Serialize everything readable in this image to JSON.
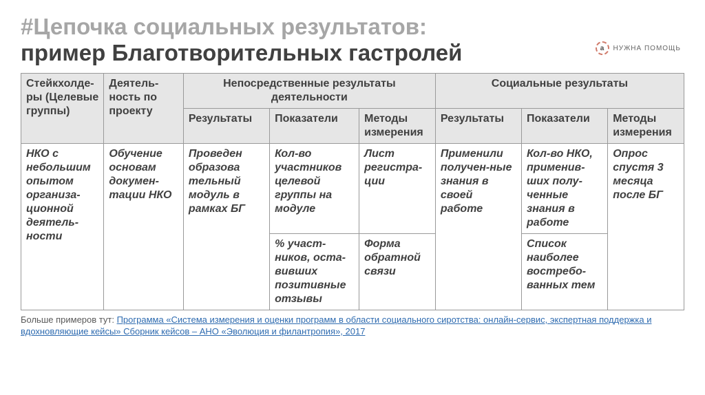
{
  "title": {
    "line1": "#Цепочка социальных результатов:",
    "line2": "пример Благотворительных гастролей"
  },
  "brand": {
    "icon_letter": "a",
    "text": "НУЖНА ПОМОЩЬ"
  },
  "table": {
    "headers": {
      "col1": "Стейкхолде-ры (Целевые группы)",
      "col2": "Деятель-ность по проекту",
      "group1": "Непосредственные результаты деятельности",
      "group2": "Социальные результаты",
      "sub_results": "Результаты",
      "sub_indicators": "Показатели",
      "sub_methods": "Методы измерения"
    },
    "row1": {
      "c1": "НКО с небольшим опытом организа-ционной деятель-ности",
      "c2": "Обучение основам докумен-тации НКО",
      "c3": "Проведен образова тельный модуль в рамках БГ",
      "c4": "Кол-во участников целевой группы на модуле",
      "c5": "Лист регистра-ции",
      "c6": "Применили получен-ные знания в своей работе",
      "c7": "Кол-во НКО, применив-ших полу-ченные знания в работе",
      "c8": "Опрос спустя 3 месяца после БГ"
    },
    "row2": {
      "c4": "% участ-ников, оста-вивших позитивные отзывы",
      "c5": "Форма обратной связи",
      "c7": "Список наиболее востребо-ванных тем"
    }
  },
  "footnote": {
    "prefix": "Больше примеров тут: ",
    "link": "Программа «Система измерения и оценки программ в области социального сиротства: онлайн-сервис, экспертная поддержка и вдохновляющие кейсы» Сборник кейсов – АНО «Эволюция и филантропия», 2017"
  },
  "colors": {
    "header_bg": "#e6e6e6",
    "title_grey": "#a6a6a6",
    "title_dark": "#404040",
    "link": "#2e6bb0",
    "border": "#999999"
  }
}
